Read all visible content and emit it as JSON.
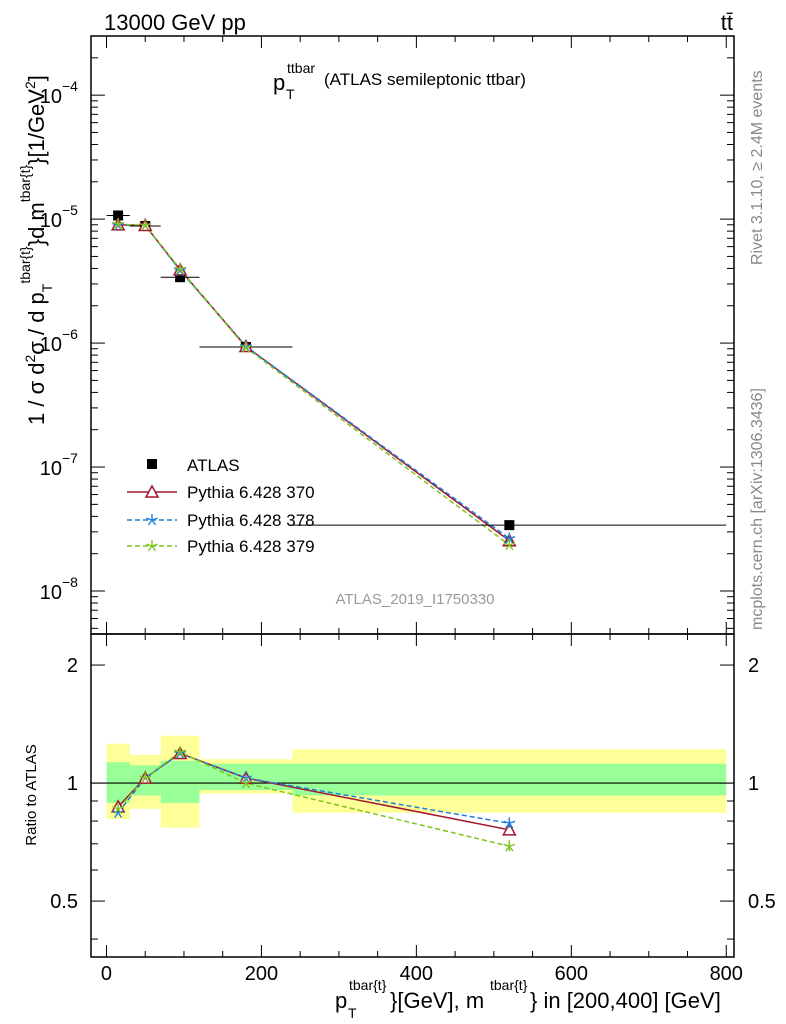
{
  "header": {
    "energy_label": "13000 GeV pp",
    "process_label": "tt̄"
  },
  "side_labels": {
    "rivet": "Rivet 3.1.10, ≥ 2.4M events",
    "mcplots": "mcplots.cern.ch [arXiv:1306.3436]"
  },
  "colors": {
    "data": "#000000",
    "pythia_370": "#a3162e",
    "pythia_378": "#1e7fdc",
    "pythia_379": "#7fc31c",
    "band_inner": "#99ff99",
    "band_outer": "#ffff99"
  },
  "chart_data": [
    {
      "type": "scatter",
      "panel": "main",
      "title_main": "p",
      "title_sub": "T",
      "title_sup": "ttbar",
      "title_rest": "(ATLAS semileptonic ttbar)",
      "ylabel": "1 / σ d²σ / d p_T^{tbar{t}}d m^{tbar{t}}[1/GeV²]",
      "watermark": "ATLAS_2019_I1750330",
      "y_scale": "log",
      "xlim": [
        -20,
        810
      ],
      "ylim": [
        4.5e-09,
        0.0003
      ],
      "x_ticks": [
        0,
        200,
        400,
        600,
        800
      ],
      "y_tick_labels": [
        {
          "value": 0.0001,
          "base": "10",
          "exp": "−4"
        },
        {
          "value": 1e-05,
          "base": "10",
          "exp": "−5"
        },
        {
          "value": 1e-06,
          "base": "10",
          "exp": "−6"
        },
        {
          "value": 1e-07,
          "base": "10",
          "exp": "−7"
        },
        {
          "value": 1e-08,
          "base": "10",
          "exp": "−8"
        }
      ],
      "x": [
        15,
        50,
        95,
        180,
        520
      ],
      "x_bins": [
        [
          0,
          30
        ],
        [
          30,
          70
        ],
        [
          70,
          120
        ],
        [
          120,
          240
        ],
        [
          240,
          800
        ]
      ],
      "series": [
        {
          "name": "ATLAS",
          "marker": "square",
          "values": [
            1.07e-05,
            8.8e-06,
            3.4e-06,
            9.3e-07,
            3.4e-08
          ]
        },
        {
          "name": "Pythia 6.428 370",
          "marker": "triangle",
          "line": "solid",
          "values": [
            9e-06,
            8.9e-06,
            3.9e-06,
            9.4e-07,
            2.55e-08
          ]
        },
        {
          "name": "Pythia 6.428 378",
          "marker": "star",
          "line": "dashed",
          "values": [
            8.9e-06,
            8.9e-06,
            3.85e-06,
            9.4e-07,
            2.65e-08
          ]
        },
        {
          "name": "Pythia 6.428 379",
          "marker": "star",
          "line": "dashed",
          "values": [
            9.1e-06,
            8.9e-06,
            3.95e-06,
            9.2e-07,
            2.35e-08
          ]
        }
      ],
      "legend_placement": "lower-left"
    },
    {
      "type": "line",
      "panel": "ratio",
      "ylabel": "Ratio to ATLAS",
      "xlabel_main": "p",
      "xlabel_sub": "T",
      "xlabel_sup1": "tbar{t}",
      "xlabel_mid": "}[GeV], m",
      "xlabel_sup2": "tbar{t}",
      "xlabel_end": "} in [200,400] [GeV]",
      "y_scale": "log",
      "xlim": [
        -20,
        810
      ],
      "ylim": [
        0.36,
        2.4
      ],
      "x_ticks": [
        0,
        200,
        400,
        600,
        800
      ],
      "y_ticks": [
        0.5,
        1,
        2
      ],
      "x": [
        15,
        50,
        95,
        180,
        520
      ],
      "bands": {
        "bins": [
          [
            0,
            30
          ],
          [
            30,
            70
          ],
          [
            70,
            120
          ],
          [
            120,
            240
          ],
          [
            240,
            800
          ]
        ],
        "inner": [
          [
            0.89,
            1.13
          ],
          [
            0.93,
            1.11
          ],
          [
            0.89,
            1.14
          ],
          [
            0.96,
            1.12
          ],
          [
            0.93,
            1.12
          ]
        ],
        "outer": [
          [
            0.81,
            1.26
          ],
          [
            0.86,
            1.18
          ],
          [
            0.77,
            1.32
          ],
          [
            0.94,
            1.15
          ],
          [
            0.84,
            1.22
          ]
        ]
      },
      "series": [
        {
          "name": "Pythia 6.428 370",
          "values": [
            0.87,
            1.03,
            1.19,
            1.03,
            0.76
          ]
        },
        {
          "name": "Pythia 6.428 378",
          "values": [
            0.84,
            1.03,
            1.19,
            1.03,
            0.79
          ],
          "errors": [
            0,
            0,
            0,
            0,
            0.02
          ]
        },
        {
          "name": "Pythia 6.428 379",
          "values": [
            0.86,
            1.03,
            1.2,
            1.0,
            0.69
          ],
          "errors": [
            0,
            0,
            0,
            0,
            0.02
          ]
        }
      ]
    }
  ]
}
